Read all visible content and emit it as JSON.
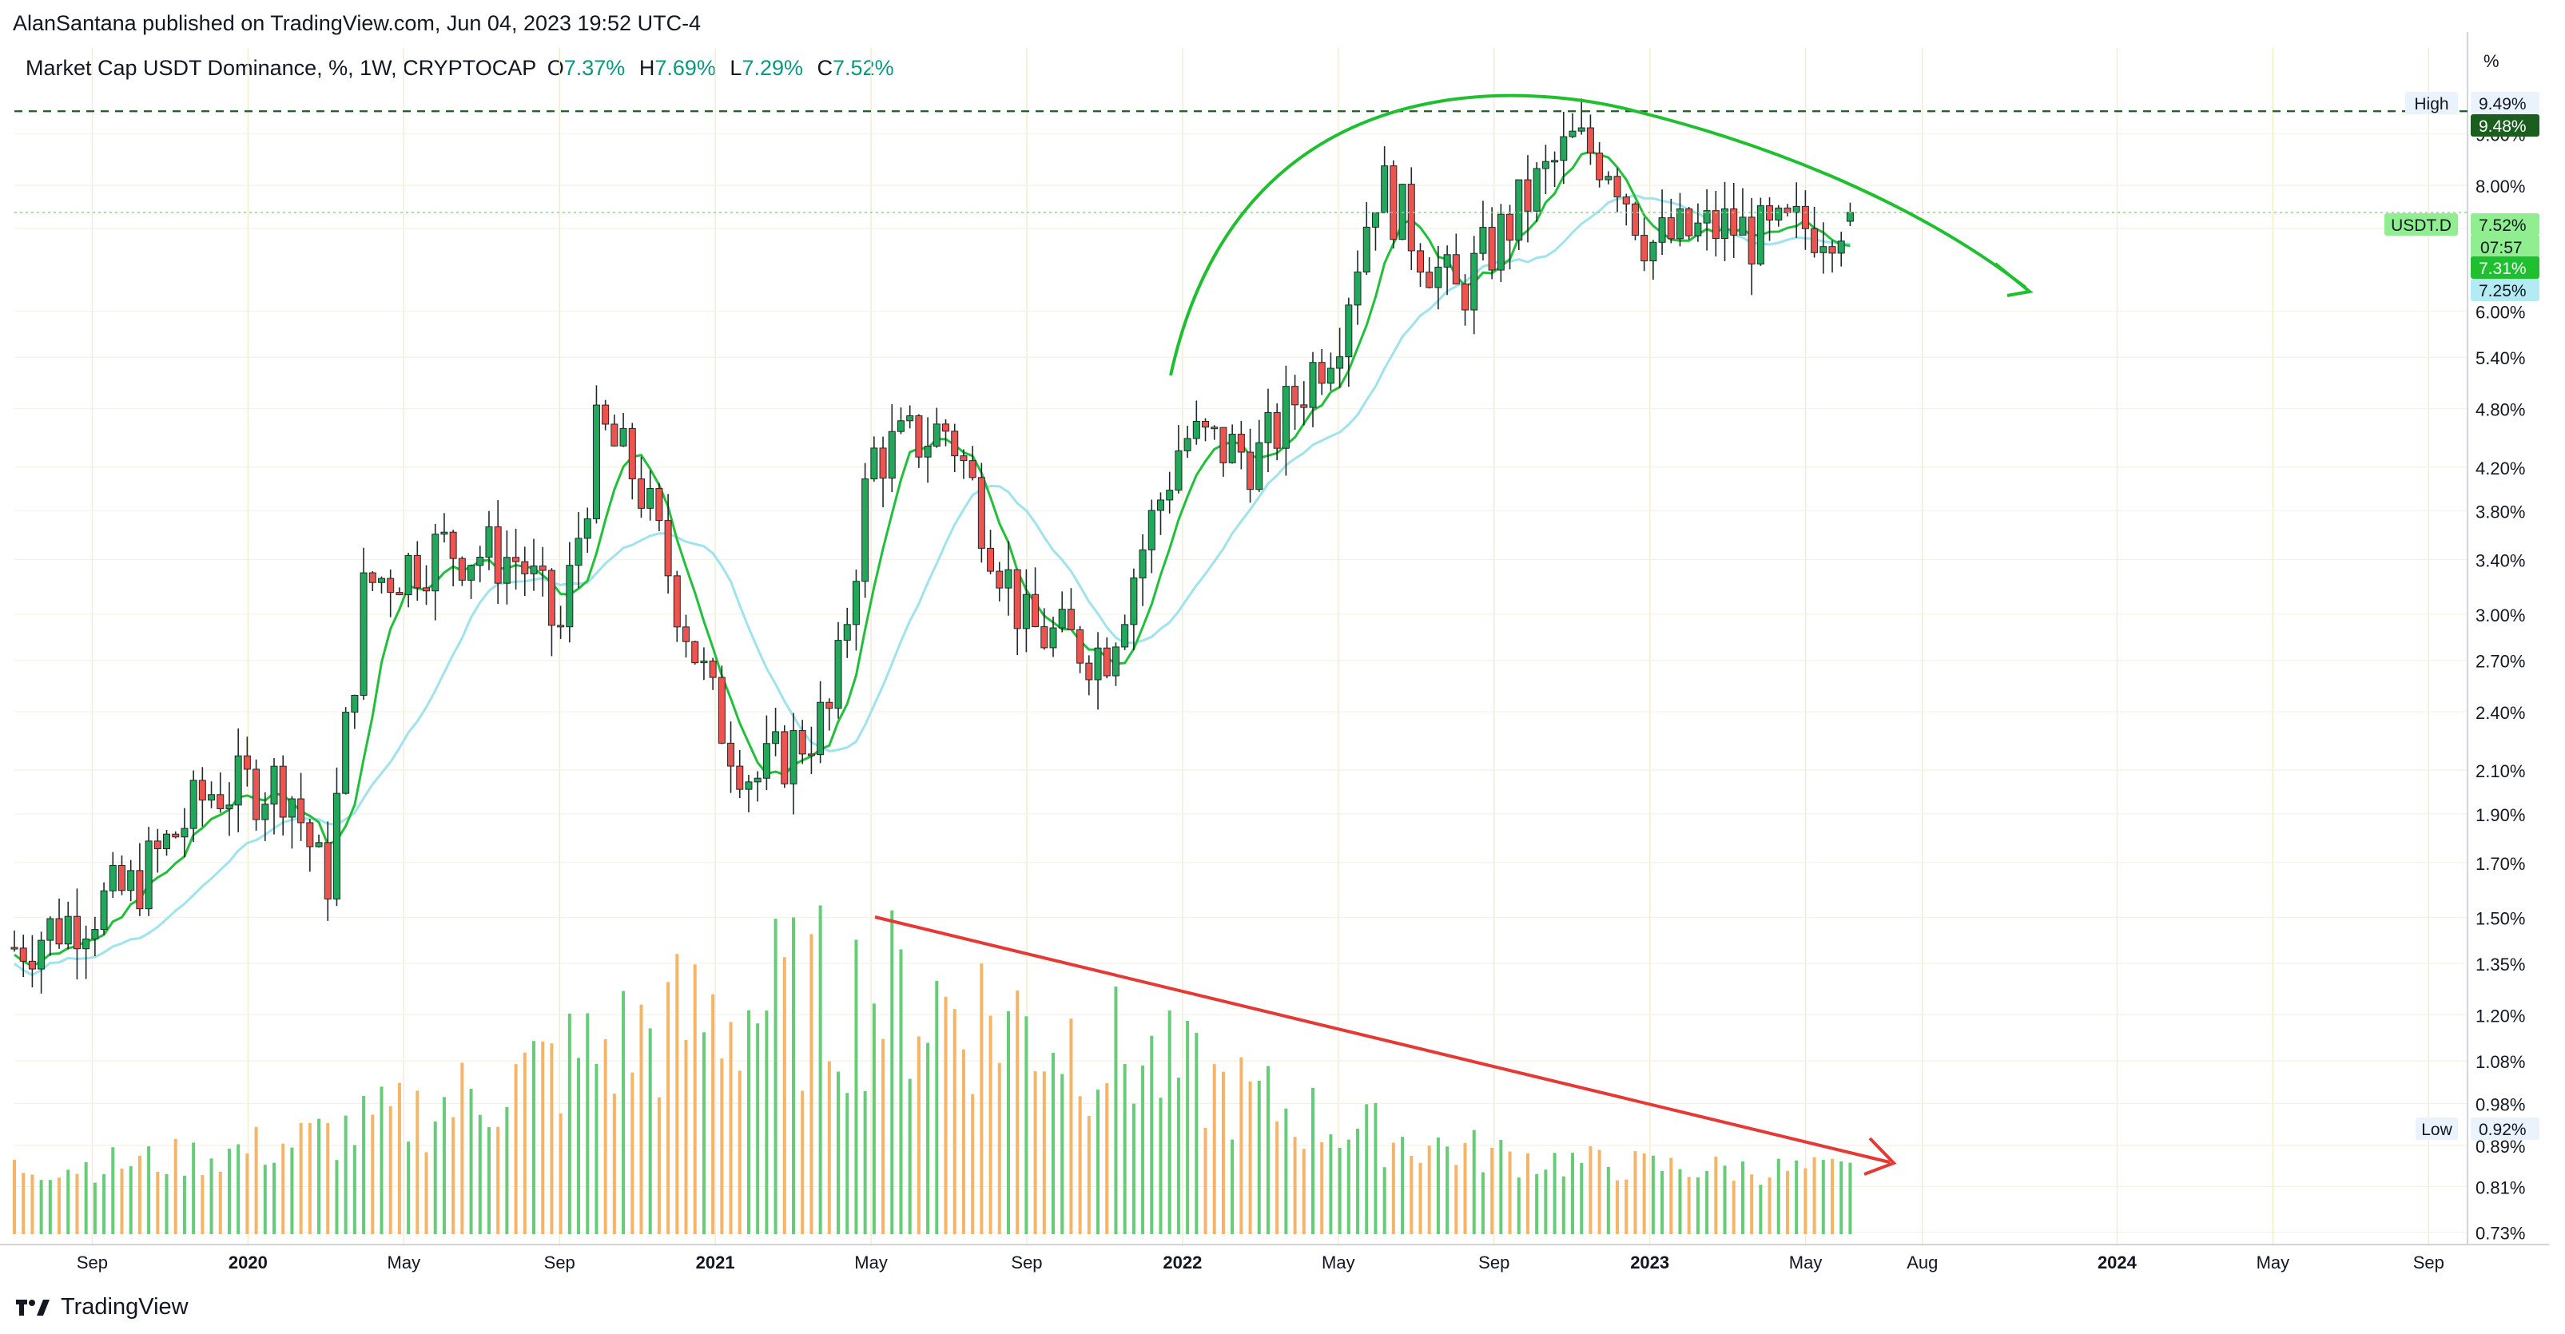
{
  "header": {
    "published": "AlanSantana published on TradingView.com, Jun 04, 2023 19:52 UTC-4",
    "symbol_desc": "Market Cap USDT Dominance, %, 1W, CRYPTOCAP",
    "open_label": "O",
    "open_value": "7.37%",
    "high_label": "H",
    "high_value": "7.69%",
    "low_label": "L",
    "low_value": "7.29%",
    "close_label": "C",
    "close_value": "7.52%"
  },
  "axis_unit": "%",
  "footer": {
    "brand": "TradingView",
    "logo_icon": "tradingview-logo-icon"
  },
  "colors": {
    "up": "#26a69a",
    "up_candle": "#21a85a",
    "down": "#ef5350",
    "ma_fast": "#22c03a",
    "ma_slow": "#9fe3ec",
    "vol_up": "#66cc77",
    "vol_down": "#f6b466",
    "arrow_green": "#1fbf2f",
    "arrow_red": "#e53935",
    "grid": "#f5ecd0",
    "high_line": "#1b5e20"
  },
  "chart_data": {
    "type": "candlestick",
    "scale": "log",
    "timeframe": "1W",
    "ylim": [
      0.72,
      10.0
    ],
    "y_ticks": [
      "9.00%",
      "8.00%",
      "7.25%",
      "6.00%",
      "5.40%",
      "4.80%",
      "4.20%",
      "3.80%",
      "3.40%",
      "3.00%",
      "2.70%",
      "2.40%",
      "2.10%",
      "1.90%",
      "1.70%",
      "1.50%",
      "1.35%",
      "1.20%",
      "1.08%",
      "0.98%",
      "0.89%",
      "0.81%",
      "0.73%"
    ],
    "x_ticks": [
      "Sep",
      "2020",
      "May",
      "Sep",
      "2021",
      "May",
      "Sep",
      "2022",
      "May",
      "Sep",
      "2023",
      "May",
      "Aug",
      "2024",
      "May",
      "Sep"
    ],
    "x_ticks_bold": [
      "2020",
      "2021",
      "2022",
      "2023",
      "2024"
    ],
    "series": [
      {
        "name": "USDT.D",
        "kind": "price"
      },
      {
        "kind": "moving_average_fast"
      },
      {
        "kind": "moving_average_slow"
      },
      {
        "kind": "volume"
      }
    ],
    "price_anchors": [
      [
        "2019-07",
        1.4
      ],
      [
        "2019-10",
        1.6
      ],
      [
        "2019-12",
        2.0
      ],
      [
        "2020-02",
        2.05
      ],
      [
        "2020-03",
        1.6
      ],
      [
        "2020-04",
        3.2
      ],
      [
        "2020-06",
        3.5
      ],
      [
        "2020-08",
        3.4
      ],
      [
        "2020-09",
        2.85
      ],
      [
        "2020-10",
        4.6
      ],
      [
        "2020-11",
        4.1
      ],
      [
        "2021-01",
        2.4
      ],
      [
        "2021-02",
        2.05
      ],
      [
        "2021-04",
        2.4
      ],
      [
        "2021-05",
        4.3
      ],
      [
        "2021-07",
        4.6
      ],
      [
        "2021-09",
        2.9
      ],
      [
        "2021-11",
        2.75
      ],
      [
        "2022-01",
        4.5
      ],
      [
        "2022-03",
        4.3
      ],
      [
        "2022-05",
        5.8
      ],
      [
        "2022-06",
        8.1
      ],
      [
        "2022-08",
        6.2
      ],
      [
        "2022-10",
        7.9
      ],
      [
        "2022-11",
        8.8
      ],
      [
        "2022-12",
        8.5
      ],
      [
        "2023-01",
        7.0
      ],
      [
        "2023-03",
        7.3
      ],
      [
        "2023-04",
        7.05
      ],
      [
        "2023-06",
        7.52
      ]
    ],
    "markers": [
      {
        "label": "High",
        "value": "9.49%"
      },
      {
        "label": "",
        "value": "9.48%",
        "style": "high-line"
      },
      {
        "label": "USDT.D",
        "value": "7.52%",
        "sub": "07:57",
        "style": "last-price"
      },
      {
        "label": "",
        "value": "7.31%",
        "style": "ma-fast"
      },
      {
        "label": "",
        "value": "7.25%",
        "style": "ma-slow"
      },
      {
        "label": "Low",
        "value": "0.92%"
      }
    ],
    "annotations": [
      {
        "kind": "curved-arrow",
        "color": "green",
        "meaning": "rounded top"
      },
      {
        "kind": "straight-arrow",
        "color": "red",
        "meaning": "declining volume"
      }
    ]
  }
}
